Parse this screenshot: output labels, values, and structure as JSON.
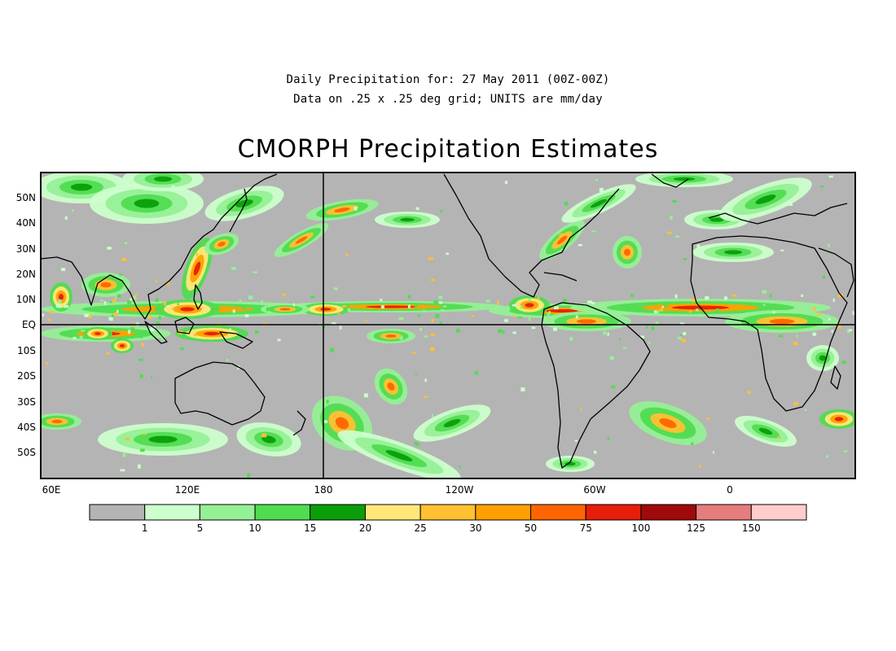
{
  "header": {
    "line1": "Daily Precipitation for: 27 May 2011 (00Z-00Z)",
    "line2": "Data on .25 x .25 deg grid; UNITS are mm/day",
    "title": "CMORPH Precipitation Estimates"
  },
  "map": {
    "lat_labels": [
      "50N",
      "40N",
      "30N",
      "20N",
      "10N",
      "EQ",
      "10S",
      "20S",
      "30S",
      "40S",
      "50S"
    ],
    "lon_labels": [
      "60E",
      "120E",
      "180",
      "120W",
      "60W",
      "0"
    ],
    "land_background": "#b4b4b4",
    "reference_lines": [
      "EQ",
      "180"
    ]
  },
  "legend": {
    "thresholds": [
      "1",
      "5",
      "10",
      "15",
      "20",
      "25",
      "30",
      "50",
      "75",
      "100",
      "125",
      "150"
    ],
    "colors": [
      "#b4b4b4",
      "#ccffcc",
      "#96f096",
      "#50dc50",
      "#0a9e0a",
      "#ffe878",
      "#ffc032",
      "#ffa000",
      "#ff6400",
      "#e61e0a",
      "#a00a0a",
      "#e67d7d",
      "#ffcccc"
    ]
  }
}
